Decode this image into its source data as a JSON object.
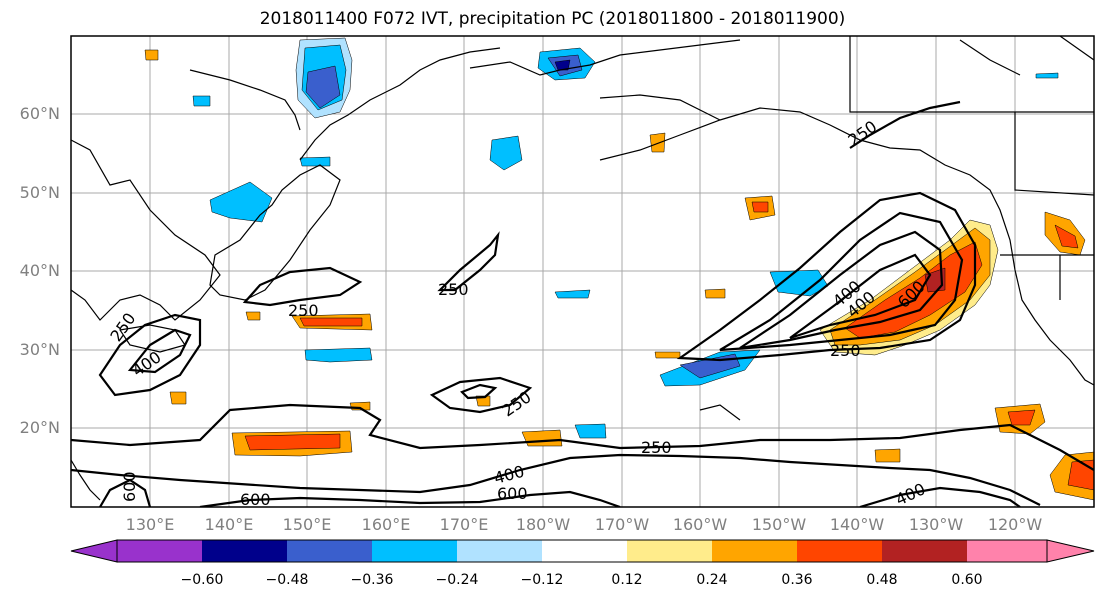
{
  "title": "2018011400 F072 IVT, precipitation PC (2018011800 - 2018011900)",
  "lat_labels": [
    "60°N",
    "50°N",
    "40°N",
    "30°N",
    "20°N"
  ],
  "lon_labels": [
    "130°E",
    "140°E",
    "150°E",
    "160°E",
    "170°E",
    "180°W",
    "170°W",
    "160°W",
    "150°W",
    "140°W",
    "130°W",
    "120°W"
  ],
  "colorbar": {
    "tick_labels": [
      "−0.60",
      "−0.48",
      "−0.36",
      "−0.24",
      "−0.12",
      "0.12",
      "0.24",
      "0.36",
      "0.48",
      "0.60"
    ],
    "colors": [
      "#9932cc",
      "#00008b",
      "#3a5fcd",
      "#00bfff",
      "#b0e2ff",
      "#ffffff",
      "#ffec8b",
      "#ffa500",
      "#ff4500",
      "#b22222",
      "#ff82ab"
    ]
  },
  "contour_labels": [
    "250",
    "250",
    "250",
    "250",
    "250",
    "250",
    "250",
    "400",
    "400",
    "400",
    "400",
    "400",
    "600",
    "600",
    "600",
    "600"
  ]
}
